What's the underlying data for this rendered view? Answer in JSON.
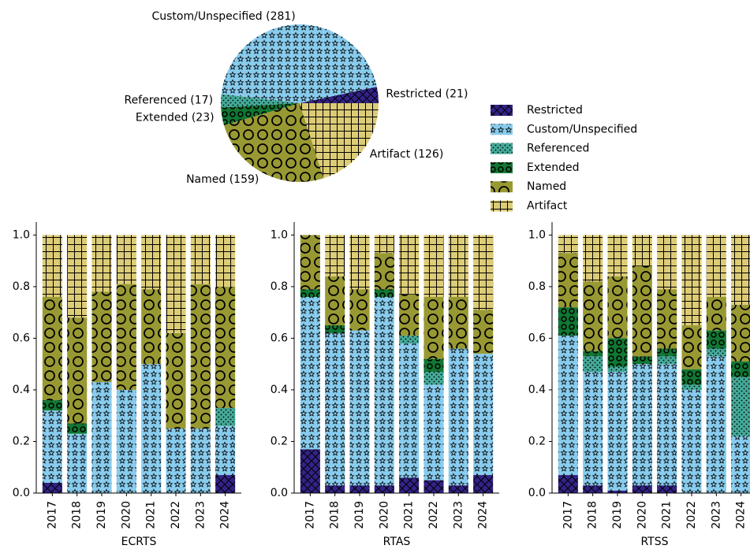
{
  "chart_data": [
    {
      "type": "pie",
      "categories": [
        "Restricted",
        "Custom/Unspecified",
        "Referenced",
        "Extended",
        "Named",
        "Artifact"
      ],
      "values": [
        21,
        281,
        17,
        23,
        159,
        126
      ],
      "value_labels": [
        "Restricted (21)",
        "Custom/Unspecified (281)",
        "Referenced (17)",
        "Extended (23)",
        "Named (159)",
        "Artifact (126)"
      ],
      "colors": [
        "#332288",
        "#88ccee",
        "#44aa99",
        "#117733",
        "#999933",
        "#ddcc77"
      ],
      "hatches": [
        "x",
        "*",
        ".",
        "o",
        "O",
        "+"
      ],
      "legend": "right"
    },
    {
      "type": "bar",
      "stacked": true,
      "xlabel": "ECRTS",
      "categories": [
        "2017",
        "2018",
        "2019",
        "2020",
        "2021",
        "2022",
        "2023",
        "2024"
      ],
      "ylim": [
        0,
        1.05
      ],
      "yticks": [
        {
          "value": 0,
          "label": "0.0"
        },
        0.2,
        0.4,
        0.6,
        0.8,
        {
          "value": 1,
          "label": "1.0"
        }
      ],
      "series": [
        {
          "name": "Restricted",
          "color": "#332288",
          "values": [
            0.04,
            0,
            0,
            0,
            0,
            0,
            0,
            0.07
          ]
        },
        {
          "name": "Custom/Unspecified",
          "color": "#88ccee",
          "values": [
            0.28,
            0.23,
            0.43,
            0.4,
            0.5,
            0.25,
            0.25,
            0.19
          ]
        },
        {
          "name": "Referenced",
          "color": "#44aa99",
          "values": [
            0,
            0,
            0,
            0,
            0,
            0,
            0,
            0.07
          ]
        },
        {
          "name": "Extended",
          "color": "#117733",
          "values": [
            0.04,
            0.04,
            0,
            0,
            0,
            0,
            0,
            0
          ]
        },
        {
          "name": "Named",
          "color": "#999933",
          "values": [
            0.4,
            0.41,
            0.35,
            0.41,
            0.29,
            0.37,
            0.56,
            0.47
          ]
        },
        {
          "name": "Artifact",
          "color": "#ddcc77",
          "values": [
            0.24,
            0.32,
            0.22,
            0.19,
            0.21,
            0.38,
            0.19,
            0.2
          ]
        }
      ]
    },
    {
      "type": "bar",
      "stacked": true,
      "xlabel": "RTAS",
      "categories": [
        "2017",
        "2018",
        "2019",
        "2020",
        "2021",
        "2022",
        "2023",
        "2024"
      ],
      "ylim": [
        0,
        1.05
      ],
      "yticks": [
        {
          "value": 0,
          "label": "0.0"
        },
        0.2,
        0.4,
        0.6,
        0.8,
        {
          "value": 1,
          "label": "1.0"
        }
      ],
      "series": [
        {
          "name": "Restricted",
          "color": "#332288",
          "values": [
            0.17,
            0.03,
            0.03,
            0.03,
            0.06,
            0.05,
            0.03,
            0.07
          ]
        },
        {
          "name": "Custom/Unspecified",
          "color": "#88ccee",
          "values": [
            0.59,
            0.59,
            0.6,
            0.73,
            0.52,
            0.37,
            0.53,
            0.47
          ]
        },
        {
          "name": "Referenced",
          "color": "#44aa99",
          "values": [
            0,
            0,
            0,
            0,
            0.03,
            0.05,
            0,
            0
          ]
        },
        {
          "name": "Extended",
          "color": "#117733",
          "values": [
            0.03,
            0.03,
            0,
            0.03,
            0,
            0.05,
            0,
            0
          ]
        },
        {
          "name": "Named",
          "color": "#999933",
          "values": [
            0.21,
            0.19,
            0.16,
            0.14,
            0.16,
            0.24,
            0.2,
            0.17
          ]
        },
        {
          "name": "Artifact",
          "color": "#ddcc77",
          "values": [
            0,
            0.16,
            0.21,
            0.07,
            0.23,
            0.24,
            0.24,
            0.29
          ]
        }
      ]
    },
    {
      "type": "bar",
      "stacked": true,
      "xlabel": "RTSS",
      "categories": [
        "2017",
        "2018",
        "2019",
        "2020",
        "2021",
        "2022",
        "2023",
        "2024"
      ],
      "ylim": [
        0,
        1.05
      ],
      "yticks": [
        {
          "value": 0,
          "label": "0.0"
        },
        0.2,
        0.4,
        0.6,
        0.8,
        {
          "value": 1,
          "label": "1.0"
        }
      ],
      "series": [
        {
          "name": "Restricted",
          "color": "#332288",
          "values": [
            0.07,
            0.03,
            0.01,
            0.03,
            0.03,
            0,
            0,
            0
          ]
        },
        {
          "name": "Custom/Unspecified",
          "color": "#88ccee",
          "values": [
            0.54,
            0.44,
            0.46,
            0.47,
            0.47,
            0.4,
            0.53,
            0.22
          ]
        },
        {
          "name": "Referenced",
          "color": "#44aa99",
          "values": [
            0,
            0.06,
            0.02,
            0,
            0.03,
            0.02,
            0.03,
            0.23
          ]
        },
        {
          "name": "Extended",
          "color": "#117733",
          "values": [
            0.11,
            0.02,
            0.11,
            0.03,
            0.03,
            0.06,
            0.07,
            0.06
          ]
        },
        {
          "name": "Named",
          "color": "#999933",
          "values": [
            0.21,
            0.27,
            0.24,
            0.35,
            0.23,
            0.17,
            0.13,
            0.22
          ]
        },
        {
          "name": "Artifact",
          "color": "#ddcc77",
          "values": [
            0.07,
            0.18,
            0.16,
            0.12,
            0.21,
            0.35,
            0.24,
            0.27
          ]
        }
      ]
    }
  ]
}
